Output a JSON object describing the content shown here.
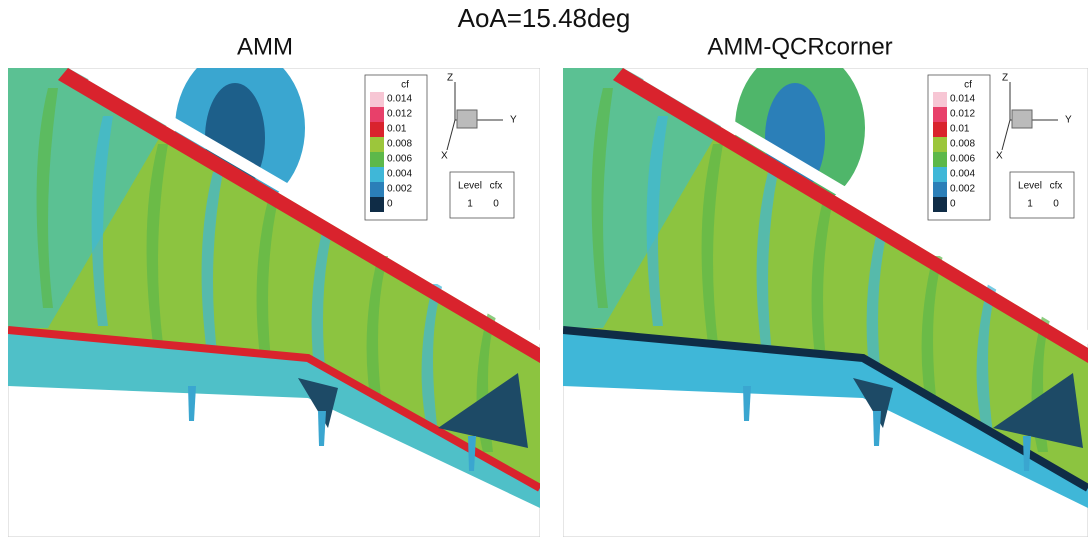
{
  "title": "AoA=15.48deg",
  "panels": [
    {
      "title": "AMM",
      "legend": {
        "title": "cf",
        "levels": [
          0.014,
          0.012,
          0.01,
          0.008,
          0.006,
          0.004,
          0.002,
          0
        ]
      },
      "triad": {
        "z": "Z",
        "y": "Y",
        "x": "X"
      },
      "level_table": {
        "header": [
          "Level",
          "cfx"
        ],
        "row": [
          1,
          0
        ]
      }
    },
    {
      "title": "AMM-QCRcorner",
      "legend": {
        "title": "cf",
        "levels": [
          0.014,
          0.012,
          0.01,
          0.008,
          0.006,
          0.004,
          0.002,
          0
        ]
      },
      "triad": {
        "z": "Z",
        "y": "Y",
        "x": "X"
      },
      "level_table": {
        "header": [
          "Level",
          "cfx"
        ],
        "row": [
          1,
          0
        ]
      }
    }
  ]
}
